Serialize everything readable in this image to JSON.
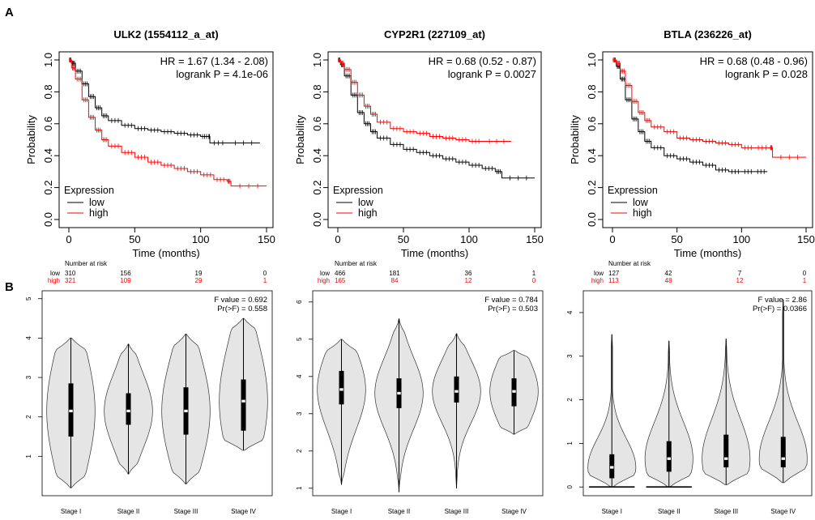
{
  "panel_labels": [
    "A",
    "B"
  ],
  "km": {
    "risk_header": "Number at risk",
    "xlabel": "Time (months)",
    "ylabel": "Probability",
    "legend_title": "Expression",
    "colors": {
      "low": "#000000",
      "high": "#ff0000"
    }
  },
  "chart_data": [
    {
      "type": "line",
      "title": "ULK2 (1554112_a_at)",
      "xlabel": "Time (months)",
      "ylabel": "Probability",
      "xlim": [
        0,
        150
      ],
      "ylim": [
        0,
        1
      ],
      "xticks": [
        "0",
        "50",
        "100",
        "150"
      ],
      "yticks": [
        "0.0",
        "0.2",
        "0.4",
        "0.6",
        "0.8",
        "1.0"
      ],
      "annotation": [
        "HR = 1.67 (1.34 - 2.08)",
        "logrank P = 4.1e-06"
      ],
      "legend": {
        "title": "Expression",
        "entries": [
          "low",
          "high"
        ]
      },
      "series": [
        {
          "name": "low",
          "color": "#000000",
          "x": [
            0,
            2,
            5,
            10,
            15,
            20,
            25,
            30,
            40,
            50,
            60,
            70,
            80,
            90,
            100,
            106,
            107,
            120,
            145
          ],
          "y": [
            1.0,
            0.98,
            0.93,
            0.85,
            0.77,
            0.7,
            0.65,
            0.62,
            0.59,
            0.57,
            0.56,
            0.55,
            0.54,
            0.53,
            0.52,
            0.52,
            0.48,
            0.48,
            0.48
          ]
        },
        {
          "name": "high",
          "color": "#ff0000",
          "x": [
            0,
            2,
            5,
            10,
            15,
            20,
            25,
            30,
            40,
            50,
            60,
            70,
            80,
            90,
            100,
            110,
            120,
            123,
            150
          ],
          "y": [
            1.0,
            0.95,
            0.88,
            0.75,
            0.64,
            0.56,
            0.5,
            0.46,
            0.42,
            0.39,
            0.36,
            0.34,
            0.32,
            0.3,
            0.28,
            0.25,
            0.24,
            0.21,
            0.21
          ]
        }
      ],
      "risk_table": {
        "times": [
          "0",
          "50",
          "100",
          "150"
        ],
        "low": [
          "310",
          "156",
          "19",
          "0"
        ],
        "high": [
          "321",
          "109",
          "29",
          "1"
        ]
      }
    },
    {
      "type": "line",
      "title": "CYP2R1 (227109_at)",
      "xlabel": "Time (months)",
      "ylabel": "Probability",
      "xlim": [
        0,
        150
      ],
      "ylim": [
        0,
        1
      ],
      "xticks": [
        "0",
        "50",
        "100",
        "150"
      ],
      "yticks": [
        "0.0",
        "0.2",
        "0.4",
        "0.6",
        "0.8",
        "1.0"
      ],
      "annotation": [
        "HR = 0.68 (0.52 - 0.87)",
        "logrank P = 0.0027"
      ],
      "legend": {
        "title": "Expression",
        "entries": [
          "low",
          "high"
        ]
      },
      "series": [
        {
          "name": "low",
          "color": "#000000",
          "x": [
            0,
            2,
            5,
            10,
            15,
            20,
            25,
            30,
            40,
            50,
            60,
            70,
            80,
            90,
            100,
            110,
            120,
            125,
            150
          ],
          "y": [
            1.0,
            0.97,
            0.9,
            0.78,
            0.67,
            0.6,
            0.55,
            0.51,
            0.47,
            0.44,
            0.42,
            0.4,
            0.38,
            0.36,
            0.34,
            0.32,
            0.3,
            0.26,
            0.26
          ]
        },
        {
          "name": "high",
          "color": "#ff0000",
          "x": [
            0,
            2,
            5,
            10,
            15,
            20,
            25,
            30,
            40,
            50,
            60,
            70,
            80,
            90,
            100,
            110,
            132
          ],
          "y": [
            1.0,
            0.98,
            0.94,
            0.86,
            0.78,
            0.71,
            0.66,
            0.61,
            0.57,
            0.55,
            0.54,
            0.52,
            0.51,
            0.5,
            0.49,
            0.49,
            0.49
          ]
        }
      ],
      "risk_table": {
        "times": [
          "0",
          "50",
          "100",
          "150"
        ],
        "low": [
          "466",
          "181",
          "36",
          "1"
        ],
        "high": [
          "165",
          "84",
          "12",
          "0"
        ]
      }
    },
    {
      "type": "line",
      "title": "BTLA (236226_at)",
      "xlabel": "Time (months)",
      "ylabel": "Probability",
      "xlim": [
        0,
        150
      ],
      "ylim": [
        0,
        1
      ],
      "xticks": [
        "0",
        "50",
        "100",
        "150"
      ],
      "yticks": [
        "0.0",
        "0.2",
        "0.4",
        "0.6",
        "0.8",
        "1.0"
      ],
      "annotation": [
        "HR = 0.68 (0.48 - 0.96)",
        "logrank P = 0.028"
      ],
      "legend": {
        "title": "Expression",
        "entries": [
          "low",
          "high"
        ]
      },
      "series": [
        {
          "name": "low",
          "color": "#000000",
          "x": [
            0,
            3,
            6,
            10,
            15,
            20,
            25,
            30,
            40,
            50,
            60,
            70,
            80,
            90,
            100,
            110,
            120
          ],
          "y": [
            1.0,
            0.96,
            0.88,
            0.75,
            0.63,
            0.55,
            0.49,
            0.45,
            0.4,
            0.38,
            0.36,
            0.34,
            0.31,
            0.3,
            0.3,
            0.3,
            0.3
          ]
        },
        {
          "name": "high",
          "color": "#ff0000",
          "x": [
            0,
            3,
            6,
            10,
            15,
            20,
            25,
            30,
            40,
            50,
            60,
            70,
            80,
            90,
            100,
            110,
            122,
            124,
            150
          ],
          "y": [
            1.0,
            0.98,
            0.93,
            0.84,
            0.74,
            0.67,
            0.62,
            0.58,
            0.55,
            0.51,
            0.5,
            0.49,
            0.48,
            0.47,
            0.45,
            0.45,
            0.45,
            0.39,
            0.39
          ]
        }
      ],
      "risk_table": {
        "times": [
          "0",
          "50",
          "100",
          "150"
        ],
        "low": [
          "127",
          "42",
          "7",
          "0"
        ],
        "high": [
          "113",
          "48",
          "12",
          "1"
        ]
      }
    },
    {
      "type": "violin",
      "categories": [
        "Stage I",
        "Stage II",
        "Stage III",
        "Stage IV"
      ],
      "ylim": [
        0,
        5.2
      ],
      "yticks": [
        "1",
        "2",
        "3",
        "4",
        "5"
      ],
      "annotation": [
        "F value = 0.692",
        "Pr(>F) = 0.558"
      ],
      "series": [
        {
          "min": 0.2,
          "max": 4.0,
          "q1": 1.5,
          "median": 2.15,
          "q3": 2.85
        },
        {
          "min": 0.55,
          "max": 3.85,
          "q1": 1.8,
          "median": 2.15,
          "q3": 2.6
        },
        {
          "min": 0.3,
          "max": 4.1,
          "q1": 1.55,
          "median": 2.15,
          "q3": 2.75
        },
        {
          "min": 1.15,
          "max": 4.5,
          "q1": 1.65,
          "median": 2.4,
          "q3": 2.95
        }
      ]
    },
    {
      "type": "violin",
      "categories": [
        "Stage I",
        "Stage II",
        "Stage III",
        "Stage IV"
      ],
      "ylim": [
        0.8,
        6.3
      ],
      "yticks": [
        "1",
        "2",
        "3",
        "4",
        "5",
        "6"
      ],
      "annotation": [
        "F value = 0.784",
        "Pr(>F) = 0.503"
      ],
      "series": [
        {
          "min": 1.1,
          "max": 5.0,
          "q1": 3.25,
          "median": 3.65,
          "q3": 4.15
        },
        {
          "min": 0.9,
          "max": 5.55,
          "q1": 3.15,
          "median": 3.55,
          "q3": 3.95
        },
        {
          "min": 1.0,
          "max": 5.15,
          "q1": 3.3,
          "median": 3.6,
          "q3": 4.0
        },
        {
          "min": 2.45,
          "max": 4.7,
          "q1": 3.2,
          "median": 3.6,
          "q3": 3.95
        }
      ]
    },
    {
      "type": "violin",
      "categories": [
        "Stage I",
        "Stage II",
        "Stage III",
        "Stage IV"
      ],
      "ylim": [
        -0.2,
        4.5
      ],
      "yticks": [
        "0",
        "1",
        "2",
        "3",
        "4"
      ],
      "annotation": [
        "F value = 2.86",
        "Pr(>F) = 0.0366"
      ],
      "series": [
        {
          "min": 0.0,
          "max": 3.5,
          "q1": 0.2,
          "median": 0.45,
          "q3": 0.75
        },
        {
          "min": 0.0,
          "max": 3.35,
          "q1": 0.35,
          "median": 0.65,
          "q3": 1.05
        },
        {
          "min": 0.05,
          "max": 3.4,
          "q1": 0.45,
          "median": 0.65,
          "q3": 1.2
        },
        {
          "min": 0.1,
          "max": 4.3,
          "q1": 0.45,
          "median": 0.65,
          "q3": 1.15
        }
      ]
    }
  ]
}
